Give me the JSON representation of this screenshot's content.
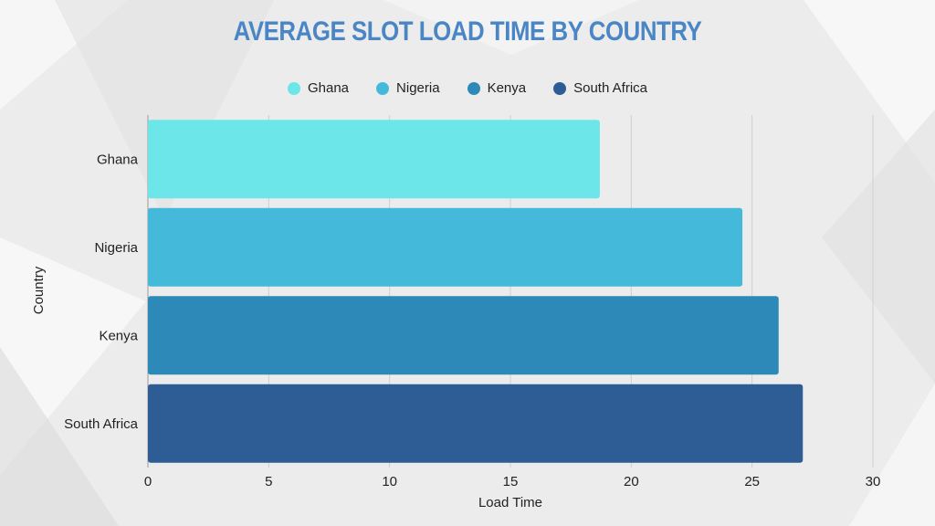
{
  "chart_data": {
    "type": "bar",
    "orientation": "horizontal",
    "title": "AVERAGE SLOT LOAD TIME BY COUNTRY",
    "xlabel": "Load Time",
    "ylabel": "Country",
    "xlim": [
      0,
      30
    ],
    "xticks": [
      0,
      5,
      10,
      15,
      20,
      25,
      30
    ],
    "grid": true,
    "legend_position": "top",
    "categories": [
      "Ghana",
      "Nigeria",
      "Kenya",
      "South Africa"
    ],
    "values": [
      18.7,
      24.6,
      26.1,
      27.1
    ],
    "colors": [
      "#6ce6e8",
      "#45b9d9",
      "#2d8ab8",
      "#2e5d96"
    ]
  }
}
